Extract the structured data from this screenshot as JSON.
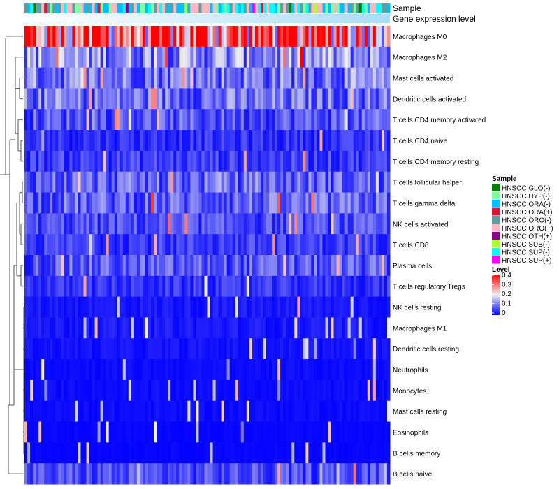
{
  "chart_data": {
    "type": "heatmap",
    "title": "",
    "annotations": [
      "Sample",
      "Gene expression level"
    ],
    "rows": [
      "Macrophages M0",
      "Macrophages M2",
      "Mast cells activated",
      "Dendritic cells activated",
      "T cells CD4 memory activated",
      "T cells CD4 naive",
      "T cells CD4 memory resting",
      "T cells follicular helper",
      "T cells gamma delta",
      "NK cells activated",
      "T cells CD8",
      "Plasma cells",
      "T cells regulatory  Tregs",
      "NK cells resting",
      "Macrophages M1",
      "Dendritic cells resting",
      "Neutrophils",
      "Monocytes",
      "Mast cells resting",
      "Eosinophils",
      "B cells memory",
      "B cells naive"
    ],
    "row_mean_level": [
      0.32,
      0.12,
      0.1,
      0.09,
      0.07,
      0.04,
      0.05,
      0.08,
      0.08,
      0.06,
      0.05,
      0.07,
      0.04,
      0.02,
      0.02,
      0.015,
      0.01,
      0.01,
      0.01,
      0.005,
      0.005,
      0.06
    ],
    "n_samples": 130,
    "sample_legend": {
      "title": "Sample",
      "entries": [
        {
          "label": "HNSCC GLO(-)",
          "color": "#008000"
        },
        {
          "label": "HNSCC HYP(-)",
          "color": "#7fffa0"
        },
        {
          "label": "HNSCC ORA(-)",
          "color": "#00bfff"
        },
        {
          "label": "HNSCC ORA(+)",
          "color": "#dc143c"
        },
        {
          "label": "HNSCC ORO(-)",
          "color": "#5f9ea0"
        },
        {
          "label": "HNSCC ORO(+)",
          "color": "#ffb6c1"
        },
        {
          "label": "HNSCC OTH(+)",
          "color": "#8b008b"
        },
        {
          "label": "HNSCC SUB(-)",
          "color": "#adff2f"
        },
        {
          "label": "HNSCC SUP(-)",
          "color": "#00ffff"
        },
        {
          "label": "HNSCC SUP(+)",
          "color": "#ff00ff"
        }
      ]
    },
    "level_legend": {
      "title": "Level",
      "ticks": [
        "0.4",
        "0.3",
        "0.2",
        "0.1",
        "0"
      ],
      "range": [
        0,
        0.4
      ],
      "colors": {
        "low": "#0000ff",
        "mid": "#f0f0f0",
        "high": "#ff0000"
      }
    },
    "gene_expression_colors": {
      "low": "#ffffff",
      "high": "#aadcf5"
    }
  }
}
